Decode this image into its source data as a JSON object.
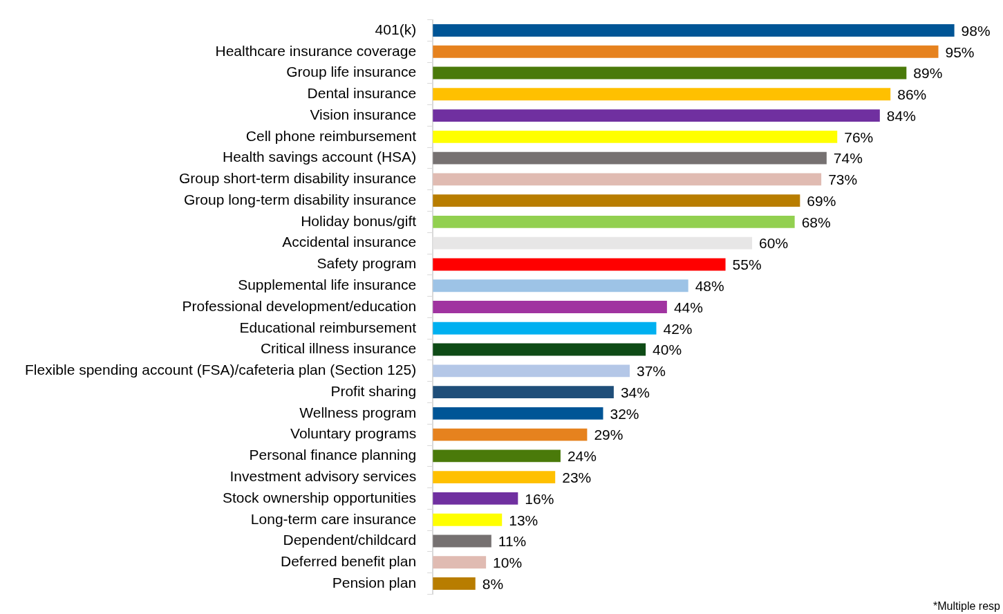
{
  "chart_data": {
    "type": "bar",
    "orientation": "horizontal",
    "categories": [
      "401(k)",
      "Healthcare insurance coverage",
      "Group life insurance",
      "Dental insurance",
      "Vision insurance",
      "Cell phone reimbursement",
      "Health savings account (HSA)",
      "Group short-term disability insurance",
      "Group long-term disability insurance",
      "Holiday bonus/gift",
      "Accidental insurance",
      "Safety program",
      "Supplemental life insurance",
      "Professional development/education",
      "Educational reimbursement",
      "Critical illness insurance",
      "Flexible spending account (FSA)/cafeteria plan (Section 125)",
      "Profit sharing",
      "Wellness program",
      "Voluntary programs",
      "Personal finance planning",
      "Investment advisory services",
      "Stock ownership opportunities",
      "Long-term care insurance",
      "Dependent/childcard",
      "Deferred benefit plan",
      "Pension plan"
    ],
    "values": [
      98,
      95,
      89,
      86,
      84,
      76,
      74,
      73,
      69,
      68,
      60,
      55,
      48,
      44,
      42,
      40,
      37,
      34,
      32,
      29,
      24,
      23,
      16,
      13,
      11,
      10,
      8
    ],
    "value_labels": [
      "98%",
      "95%",
      "89%",
      "86%",
      "84%",
      "76%",
      "74%",
      "73%",
      "69%",
      "68%",
      "60%",
      "55%",
      "48%",
      "44%",
      "42%",
      "40%",
      "37%",
      "34%",
      "32%",
      "29%",
      "24%",
      "23%",
      "16%",
      "13%",
      "11%",
      "10%",
      "8%"
    ],
    "colors": [
      "#005596",
      "#e6821e",
      "#4a7a0a",
      "#ffc000",
      "#7030a0",
      "#ffff00",
      "#767171",
      "#e0bbb2",
      "#b87d00",
      "#92d050",
      "#e7e6e6",
      "#ff0000",
      "#9dc3e6",
      "#a033a0",
      "#00b0f0",
      "#0e4b16",
      "#b4c7e7",
      "#1f4e79",
      "#005596",
      "#e6821e",
      "#4a7a0a",
      "#ffc000",
      "#7030a0",
      "#ffff00",
      "#767171",
      "#e0bbb2",
      "#b87d00"
    ],
    "annotations": [
      "*Multiple resp"
    ],
    "legend": false
  }
}
